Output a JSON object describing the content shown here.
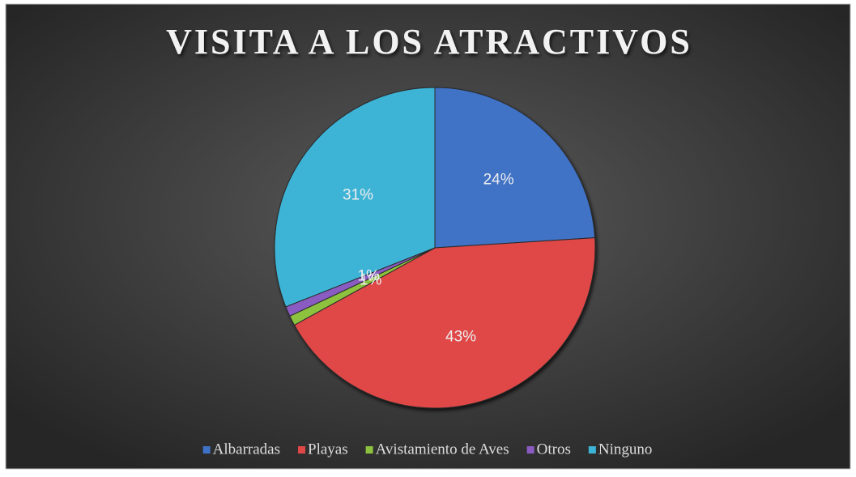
{
  "chart_data": {
    "type": "pie",
    "title": "VISITA A LOS ATRACTIVOS",
    "categories": [
      "Albarradas",
      "Playas",
      "Avistamiento de Aves",
      "Otros",
      "Ninguno"
    ],
    "values": [
      24,
      43,
      1,
      1,
      31
    ],
    "value_labels": [
      "24%",
      "43%",
      "1%",
      "1%",
      "31%"
    ],
    "colors": [
      "#3f72c6",
      "#e04747",
      "#8cc23e",
      "#8a5cc2",
      "#3db4d6"
    ],
    "legend": "bottom"
  }
}
